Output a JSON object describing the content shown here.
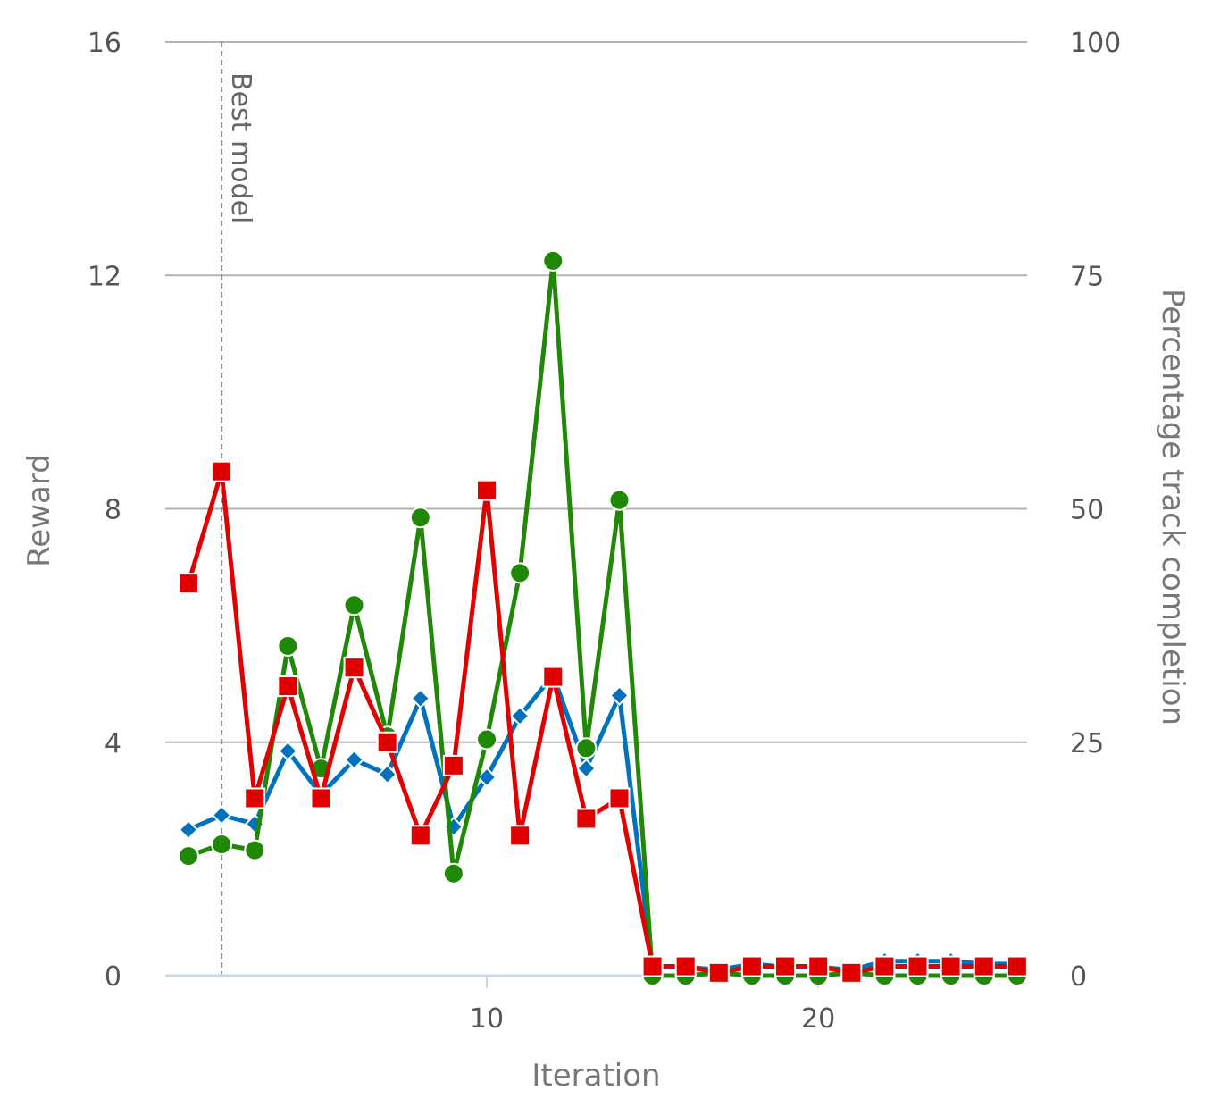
{
  "chart_data": {
    "type": "line",
    "xlabel": "Iteration",
    "ylabel": "Reward",
    "y2label": "Percentage track completion",
    "xlim": [
      0.3,
      26.3
    ],
    "ylim": [
      0,
      16
    ],
    "y2lim": [
      0,
      100
    ],
    "x_ticks": [
      10,
      20
    ],
    "y_ticks": [
      0,
      4,
      8,
      12,
      16
    ],
    "y2_ticks": [
      0,
      25,
      50,
      75,
      100
    ],
    "grid": true,
    "annotation": {
      "label": "Best model",
      "x": 2
    },
    "x": [
      1,
      2,
      3,
      4,
      5,
      6,
      7,
      8,
      9,
      10,
      11,
      12,
      13,
      14,
      15,
      16,
      17,
      18,
      19,
      20,
      21,
      22,
      23,
      24,
      25,
      26
    ],
    "series": [
      {
        "color": "#0071bc",
        "marker": "diamond",
        "axis": "left",
        "values": [
          2.5,
          2.75,
          2.6,
          3.85,
          3.1,
          3.7,
          3.45,
          4.75,
          2.55,
          3.4,
          4.45,
          5.15,
          3.55,
          4.8,
          0.15,
          0.15,
          0.1,
          0.2,
          0.15,
          0.15,
          0.1,
          0.25,
          0.25,
          0.25,
          0.2,
          0.2
        ]
      },
      {
        "color": "#218807",
        "marker": "circle",
        "axis": "left",
        "values": [
          2.05,
          2.25,
          2.15,
          5.65,
          3.55,
          6.35,
          4.1,
          7.85,
          1.75,
          4.05,
          6.9,
          12.25,
          3.9,
          8.15,
          0.0,
          0.0,
          0.05,
          0.0,
          0.0,
          0.0,
          0.05,
          0.0,
          0.0,
          0.0,
          0.0,
          0.0
        ]
      },
      {
        "color": "#e00000",
        "marker": "square",
        "axis": "right",
        "values": [
          42,
          54,
          19,
          31,
          19,
          33,
          25,
          15,
          22.5,
          52,
          15,
          32,
          16.8,
          19,
          1,
          1,
          0.3,
          1,
          1,
          1,
          0.3,
          1,
          1,
          1,
          1,
          1
        ]
      }
    ]
  }
}
